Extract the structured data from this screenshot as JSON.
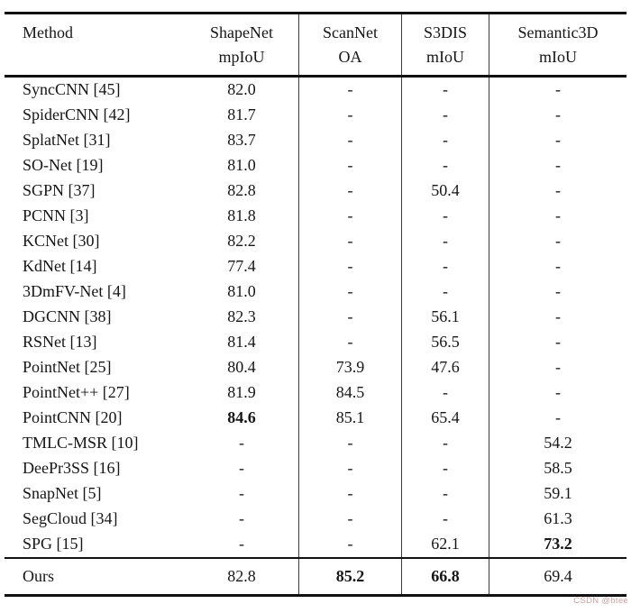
{
  "watermark": {
    "text": "CSDN @btee",
    "color": "#cda2a2"
  },
  "table": {
    "columns": [
      {
        "title": "Method",
        "subtitle": ""
      },
      {
        "title": "ShapeNet",
        "subtitle": "mpIoU"
      },
      {
        "title": "ScanNet",
        "subtitle": "OA"
      },
      {
        "title": "S3DIS",
        "subtitle": "mIoU"
      },
      {
        "title": "Semantic3D",
        "subtitle": "mIoU"
      }
    ],
    "rows": [
      {
        "method": "SyncCNN [45]",
        "values": [
          "82.0",
          "-",
          "-",
          "-"
        ],
        "bold": []
      },
      {
        "method": "SpiderCNN [42]",
        "values": [
          "81.7",
          "-",
          "-",
          "-"
        ],
        "bold": []
      },
      {
        "method": "SplatNet [31]",
        "values": [
          "83.7",
          "-",
          "-",
          "-"
        ],
        "bold": []
      },
      {
        "method": "SO-Net [19]",
        "values": [
          "81.0",
          "-",
          "-",
          "-"
        ],
        "bold": []
      },
      {
        "method": "SGPN [37]",
        "values": [
          "82.8",
          "-",
          "50.4",
          "-"
        ],
        "bold": []
      },
      {
        "method": "PCNN [3]",
        "values": [
          "81.8",
          "-",
          "-",
          "-"
        ],
        "bold": []
      },
      {
        "method": "KCNet [30]",
        "values": [
          "82.2",
          "-",
          "-",
          "-"
        ],
        "bold": []
      },
      {
        "method": "KdNet [14]",
        "values": [
          "77.4",
          "-",
          "-",
          "-"
        ],
        "bold": []
      },
      {
        "method": "3DmFV-Net [4]",
        "values": [
          "81.0",
          "-",
          "-",
          "-"
        ],
        "bold": []
      },
      {
        "method": "DGCNN [38]",
        "values": [
          "82.3",
          "-",
          "56.1",
          "-"
        ],
        "bold": []
      },
      {
        "method": "RSNet [13]",
        "values": [
          "81.4",
          "-",
          "56.5",
          "-"
        ],
        "bold": []
      },
      {
        "method": "PointNet [25]",
        "values": [
          "80.4",
          "73.9",
          "47.6",
          "-"
        ],
        "bold": []
      },
      {
        "method": "PointNet++ [27]",
        "values": [
          "81.9",
          "84.5",
          "-",
          "-"
        ],
        "bold": []
      },
      {
        "method": "PointCNN [20]",
        "values": [
          "84.6",
          "85.1",
          "65.4",
          "-"
        ],
        "bold": [
          0
        ]
      },
      {
        "method": "TMLC-MSR [10]",
        "values": [
          "-",
          "-",
          "-",
          "54.2"
        ],
        "bold": []
      },
      {
        "method": "DeePr3SS [16]",
        "values": [
          "-",
          "-",
          "-",
          "58.5"
        ],
        "bold": []
      },
      {
        "method": "SnapNet [5]",
        "values": [
          "-",
          "-",
          "-",
          "59.1"
        ],
        "bold": []
      },
      {
        "method": "SegCloud [34]",
        "values": [
          "-",
          "-",
          "-",
          "61.3"
        ],
        "bold": []
      },
      {
        "method": "SPG [15]",
        "values": [
          "-",
          "-",
          "62.1",
          "73.2"
        ],
        "bold": [
          3
        ]
      }
    ],
    "summary_row": {
      "method": "Ours",
      "values": [
        "82.8",
        "85.2",
        "66.8",
        "69.4"
      ],
      "bold": [
        1,
        2
      ]
    }
  }
}
